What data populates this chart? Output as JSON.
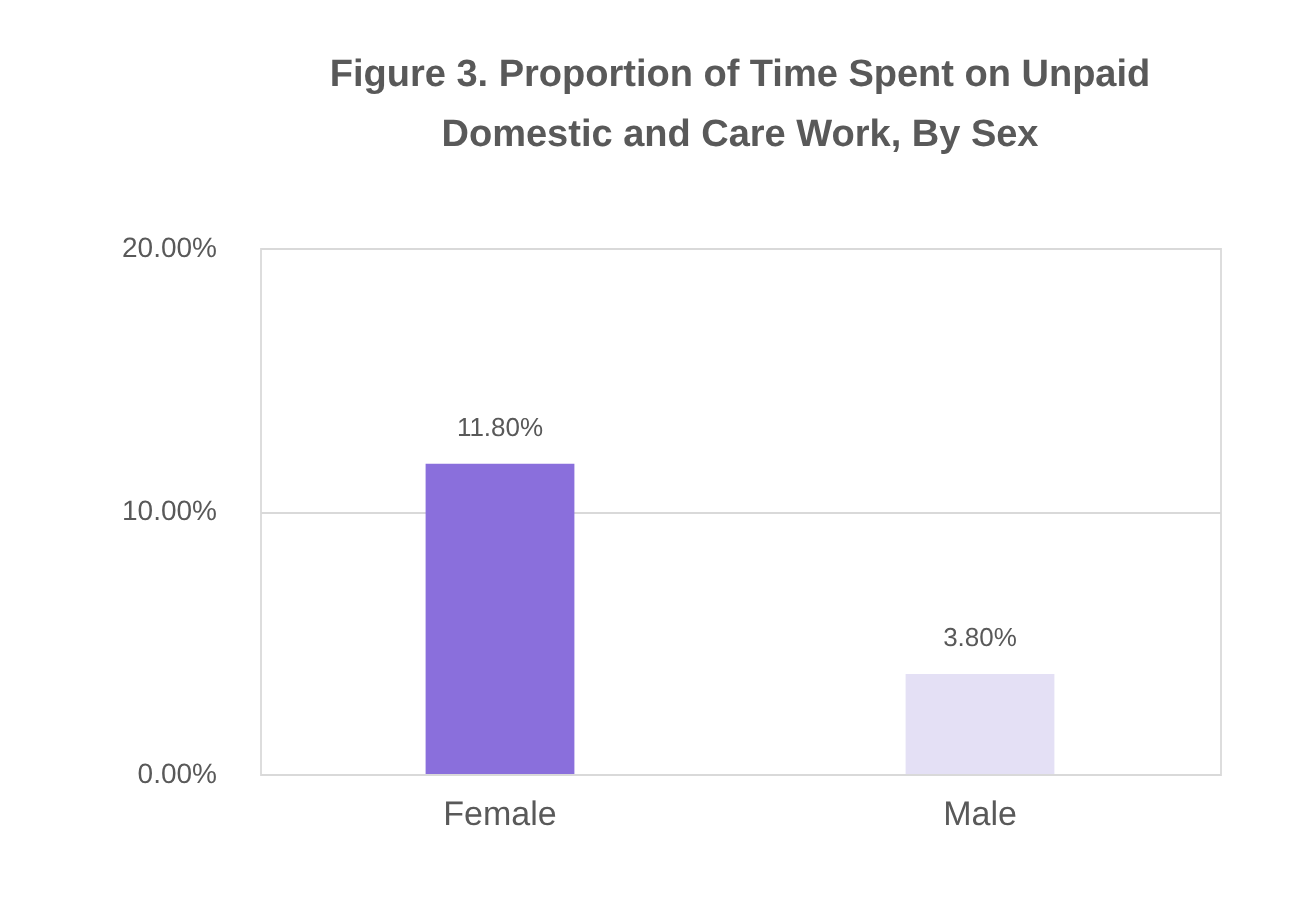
{
  "chart_data": {
    "type": "bar",
    "title": "Figure 3. Proportion of Time Spent on Unpaid Domestic and Care Work, By Sex",
    "categories": [
      "Female",
      "Male"
    ],
    "values": [
      11.8,
      3.8
    ],
    "colors": [
      "#8a6fdc",
      "#e4e0f5"
    ],
    "value_labels": [
      "11.80%",
      "3.80%"
    ],
    "ylim": [
      0,
      20
    ],
    "yticks": [
      {
        "value": 0,
        "label": "0.00%"
      },
      {
        "value": 10,
        "label": "10.00%"
      },
      {
        "value": 20,
        "label": "20.00%"
      }
    ],
    "grid": "y"
  }
}
